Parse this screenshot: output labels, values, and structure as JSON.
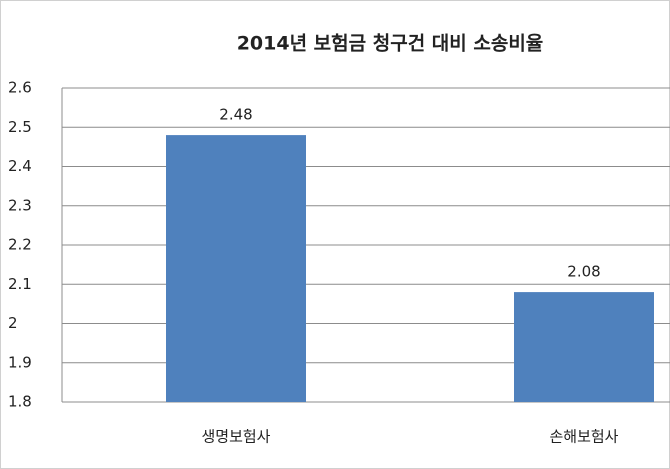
{
  "chart_data": {
    "type": "bar",
    "title": "2014년 보험금 청구건 대비 소송비율",
    "categories": [
      "생명보험사",
      "손해보험사"
    ],
    "values": [
      2.48,
      2.08
    ],
    "color": "#4f81bd",
    "ylim": [
      1.8,
      2.6
    ],
    "yticks": [
      1.8,
      1.9,
      2,
      2.1,
      2.2,
      2.3,
      2.4,
      2.5,
      2.6
    ],
    "grid": true
  }
}
